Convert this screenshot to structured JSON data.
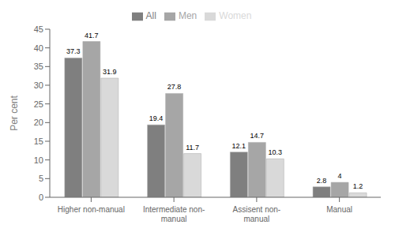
{
  "chart_data": {
    "type": "bar",
    "categories": [
      "Higher non-manual",
      "Intermediate non-\nmanual",
      "Assisent non-\nmanual",
      "Manual"
    ],
    "series": [
      {
        "name": "All",
        "color": "#7f7f7f",
        "values": [
          37.3,
          19.4,
          12.1,
          2.8
        ]
      },
      {
        "name": "Men",
        "color": "#a6a6a6",
        "values": [
          41.7,
          27.8,
          14.7,
          4.0
        ]
      },
      {
        "name": "Women",
        "color": "#d9d9d9",
        "values": [
          31.9,
          11.7,
          10.3,
          1.2
        ]
      }
    ],
    "ylabel": "Per cent",
    "ylim": [
      0,
      45
    ],
    "yticks": [
      0,
      5,
      10,
      15,
      20,
      25,
      30,
      35,
      40,
      45
    ],
    "data_labels": true,
    "grid": false,
    "legend": "top"
  }
}
